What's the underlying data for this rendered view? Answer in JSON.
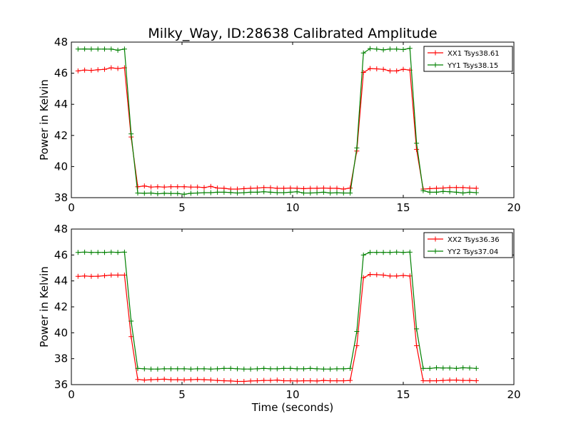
{
  "chart_data": [
    {
      "type": "line",
      "title": "Milky_Way, ID:28638 Calibrated Amplitude",
      "xlabel": "",
      "ylabel": "Power in Kelvin",
      "xlim": [
        0,
        20
      ],
      "ylim": [
        38,
        48
      ],
      "xticks": [
        "0",
        "5",
        "10",
        "15",
        "20"
      ],
      "yticks": [
        "38",
        "40",
        "42",
        "44",
        "46",
        "48"
      ],
      "grid": false,
      "legend": "top-right",
      "x": [
        0.3,
        0.6,
        0.9,
        1.2,
        1.5,
        1.8,
        2.1,
        2.4,
        2.7,
        3.0,
        3.3,
        3.6,
        3.9,
        4.2,
        4.5,
        4.8,
        5.1,
        5.4,
        5.7,
        6.0,
        6.3,
        6.6,
        6.9,
        7.2,
        7.5,
        7.8,
        8.1,
        8.4,
        8.7,
        9.0,
        9.3,
        9.6,
        9.9,
        10.2,
        10.5,
        10.8,
        11.1,
        11.4,
        11.7,
        12.0,
        12.3,
        12.6,
        12.9,
        13.2,
        13.5,
        13.8,
        14.1,
        14.4,
        14.7,
        15.0,
        15.3,
        15.6,
        15.9,
        16.2,
        16.5,
        16.8,
        17.1,
        17.4,
        17.7,
        18.0,
        18.3
      ],
      "series": [
        {
          "name": "XX1 Tsys38.61",
          "color": "#ff0000",
          "values": [
            46.15,
            46.2,
            46.18,
            46.22,
            46.25,
            46.35,
            46.3,
            46.35,
            41.9,
            38.7,
            38.75,
            38.68,
            38.7,
            38.68,
            38.7,
            38.7,
            38.7,
            38.68,
            38.68,
            38.65,
            38.72,
            38.62,
            38.6,
            38.55,
            38.55,
            38.58,
            38.6,
            38.62,
            38.65,
            38.64,
            38.6,
            38.6,
            38.62,
            38.6,
            38.58,
            38.6,
            38.6,
            38.62,
            38.6,
            38.6,
            38.55,
            38.62,
            41.0,
            46.05,
            46.3,
            46.28,
            46.25,
            46.15,
            46.15,
            46.25,
            46.2,
            41.1,
            38.55,
            38.58,
            38.6,
            38.62,
            38.65,
            38.65,
            38.65,
            38.62,
            38.6
          ]
        },
        {
          "name": "YY1 Tsys38.15",
          "color": "#008000",
          "values": [
            47.55,
            47.56,
            47.55,
            47.55,
            47.55,
            47.55,
            47.48,
            47.55,
            42.1,
            38.3,
            38.28,
            38.3,
            38.25,
            38.28,
            38.27,
            38.27,
            38.22,
            38.28,
            38.3,
            38.32,
            38.32,
            38.35,
            38.35,
            38.33,
            38.3,
            38.32,
            38.35,
            38.35,
            38.38,
            38.35,
            38.32,
            38.32,
            38.35,
            38.38,
            38.3,
            38.3,
            38.32,
            38.35,
            38.3,
            38.32,
            38.3,
            38.3,
            41.2,
            47.3,
            47.58,
            47.55,
            47.5,
            47.55,
            47.55,
            47.52,
            47.6,
            41.5,
            38.45,
            38.35,
            38.35,
            38.4,
            38.38,
            38.35,
            38.3,
            38.35,
            38.32
          ]
        }
      ]
    },
    {
      "type": "line",
      "title": "",
      "xlabel": "Time (seconds)",
      "ylabel": "Power in Kelvin",
      "xlim": [
        0,
        20
      ],
      "ylim": [
        36,
        48
      ],
      "xticks": [
        "0",
        "5",
        "10",
        "15",
        "20"
      ],
      "yticks": [
        "36",
        "38",
        "40",
        "42",
        "44",
        "46",
        "48"
      ],
      "grid": false,
      "legend": "top-right",
      "x": [
        0.3,
        0.6,
        0.9,
        1.2,
        1.5,
        1.8,
        2.1,
        2.4,
        2.7,
        3.0,
        3.3,
        3.6,
        3.9,
        4.2,
        4.5,
        4.8,
        5.1,
        5.4,
        5.7,
        6.0,
        6.3,
        6.6,
        6.9,
        7.2,
        7.5,
        7.8,
        8.1,
        8.4,
        8.7,
        9.0,
        9.3,
        9.6,
        9.9,
        10.2,
        10.5,
        10.8,
        11.1,
        11.4,
        11.7,
        12.0,
        12.3,
        12.6,
        12.9,
        13.2,
        13.5,
        13.8,
        14.1,
        14.4,
        14.7,
        15.0,
        15.3,
        15.6,
        15.9,
        16.2,
        16.5,
        16.8,
        17.1,
        17.4,
        17.7,
        18.0,
        18.3
      ],
      "series": [
        {
          "name": "XX2 Tsys36.36",
          "color": "#ff0000",
          "values": [
            44.35,
            44.38,
            44.35,
            44.36,
            44.4,
            44.45,
            44.45,
            44.45,
            39.7,
            36.4,
            36.35,
            36.38,
            36.4,
            36.42,
            36.38,
            36.38,
            36.36,
            36.38,
            36.4,
            36.38,
            36.36,
            36.32,
            36.3,
            36.28,
            36.25,
            36.25,
            36.28,
            36.3,
            36.32,
            36.32,
            36.35,
            36.3,
            36.3,
            36.28,
            36.3,
            36.3,
            36.28,
            36.32,
            36.3,
            36.3,
            36.3,
            36.32,
            39.0,
            44.25,
            44.5,
            44.48,
            44.45,
            44.38,
            44.38,
            44.42,
            44.38,
            39.0,
            36.3,
            36.3,
            36.3,
            36.32,
            36.35,
            36.35,
            36.32,
            36.32,
            36.3
          ]
        },
        {
          "name": "YY2 Tsys37.04",
          "color": "#008000",
          "values": [
            46.2,
            46.22,
            46.2,
            46.2,
            46.2,
            46.22,
            46.2,
            46.22,
            40.9,
            37.25,
            37.22,
            37.2,
            37.2,
            37.22,
            37.22,
            37.22,
            37.22,
            37.2,
            37.22,
            37.22,
            37.2,
            37.22,
            37.25,
            37.25,
            37.22,
            37.2,
            37.2,
            37.22,
            37.25,
            37.22,
            37.22,
            37.25,
            37.25,
            37.22,
            37.22,
            37.25,
            37.22,
            37.2,
            37.2,
            37.22,
            37.22,
            37.25,
            40.1,
            46.0,
            46.2,
            46.2,
            46.2,
            46.2,
            46.22,
            46.2,
            46.22,
            40.3,
            37.25,
            37.25,
            37.3,
            37.28,
            37.28,
            37.25,
            37.3,
            37.28,
            37.25
          ]
        }
      ]
    }
  ]
}
